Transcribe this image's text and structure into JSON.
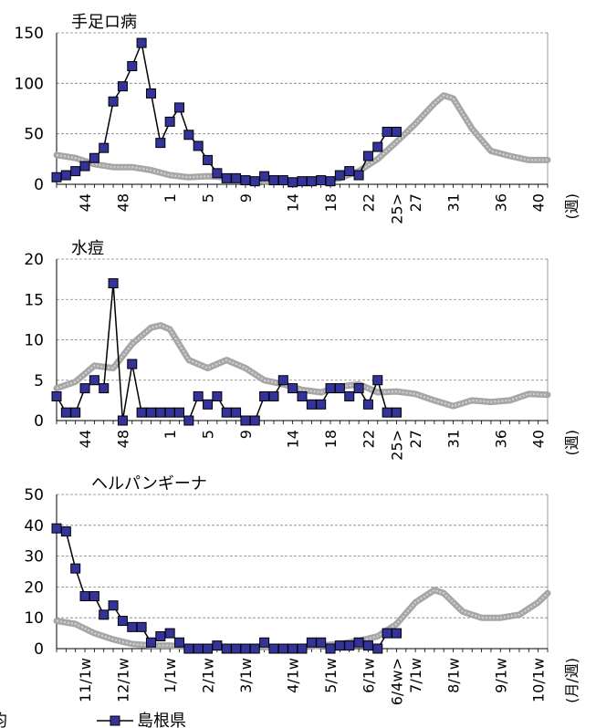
{
  "legend": {
    "left_label": "平均",
    "right_label": "島根県"
  },
  "colors": {
    "avg": "#a6a6a6",
    "shimane_fill": "#333399",
    "shimane_line": "#000000",
    "grid": "#808080"
  },
  "chart_data": [
    {
      "type": "line",
      "title": "手足ロ病",
      "ylim": [
        0,
        150
      ],
      "yticks": [
        "0",
        "50",
        "100",
        "150"
      ],
      "x_unit_label": "(週)",
      "xticks": [
        {
          "x": 44,
          "label": "44"
        },
        {
          "x": 48,
          "label": "48"
        },
        {
          "x": 53,
          "label": "1"
        },
        {
          "x": 57,
          "label": "5"
        },
        {
          "x": 61,
          "label": "9"
        },
        {
          "x": 66,
          "label": "14"
        },
        {
          "x": 70,
          "label": "18"
        },
        {
          "x": 74,
          "label": "22"
        },
        {
          "x": 77,
          "label": "25>"
        },
        {
          "x": 79,
          "label": "27"
        },
        {
          "x": 83,
          "label": "31"
        },
        {
          "x": 88,
          "label": "36"
        },
        {
          "x": 92,
          "label": "40"
        }
      ],
      "x_range": [
        41,
        93
      ],
      "series": [
        {
          "name": "平均",
          "x": [
            41,
            43,
            45,
            47,
            49,
            51,
            53,
            55,
            57,
            59,
            61,
            63,
            65,
            67,
            69,
            71,
            73,
            75,
            77,
            79,
            81,
            82,
            83,
            85,
            87,
            89,
            91,
            93
          ],
          "y": [
            29,
            26,
            20,
            17,
            17,
            14,
            9,
            7,
            8,
            7,
            5,
            3,
            3,
            2,
            3,
            6,
            13,
            25,
            42,
            60,
            80,
            88,
            85,
            55,
            33,
            28,
            24,
            24
          ]
        },
        {
          "name": "島根県",
          "x": [
            41,
            42,
            43,
            44,
            45,
            46,
            47,
            48,
            49,
            50,
            51,
            52,
            53,
            54,
            55,
            56,
            57,
            58,
            59,
            60,
            61,
            62,
            63,
            64,
            65,
            66,
            67,
            68,
            69,
            70,
            71,
            72,
            73,
            74,
            75,
            76,
            77
          ],
          "y": [
            7,
            9,
            13,
            18,
            26,
            36,
            82,
            97,
            117,
            140,
            90,
            41,
            62,
            76,
            49,
            38,
            24,
            11,
            6,
            6,
            4,
            3,
            8,
            4,
            4,
            2,
            3,
            3,
            4,
            3,
            9,
            13,
            9,
            28,
            37,
            52,
            52
          ]
        }
      ]
    },
    {
      "type": "line",
      "title": "水痘",
      "ylim": [
        0,
        20
      ],
      "yticks": [
        "0",
        "5",
        "10",
        "15",
        "20"
      ],
      "x_unit_label": "(週)",
      "xticks": [
        {
          "x": 44,
          "label": "44"
        },
        {
          "x": 48,
          "label": "48"
        },
        {
          "x": 53,
          "label": "1"
        },
        {
          "x": 57,
          "label": "5"
        },
        {
          "x": 61,
          "label": "9"
        },
        {
          "x": 66,
          "label": "14"
        },
        {
          "x": 70,
          "label": "18"
        },
        {
          "x": 74,
          "label": "22"
        },
        {
          "x": 77,
          "label": "25>"
        },
        {
          "x": 79,
          "label": "27"
        },
        {
          "x": 83,
          "label": "31"
        },
        {
          "x": 88,
          "label": "36"
        },
        {
          "x": 92,
          "label": "40"
        }
      ],
      "x_range": [
        41,
        93
      ],
      "series": [
        {
          "name": "平均",
          "x": [
            41,
            43,
            45,
            47,
            49,
            51,
            52,
            53,
            55,
            57,
            59,
            61,
            63,
            65,
            67,
            69,
            71,
            73,
            75,
            77,
            79,
            81,
            83,
            85,
            87,
            89,
            91,
            93
          ],
          "y": [
            4,
            4.8,
            6.8,
            6.5,
            9.5,
            11.5,
            11.8,
            11.3,
            7.5,
            6.5,
            7.5,
            6.5,
            5,
            4.5,
            3.8,
            3.5,
            4.2,
            4.5,
            3.5,
            3.6,
            3.3,
            2.5,
            1.8,
            2.5,
            2.3,
            2.5,
            3.3,
            3.2
          ]
        },
        {
          "name": "島根県",
          "x": [
            41,
            42,
            43,
            44,
            45,
            46,
            47,
            48,
            49,
            50,
            51,
            52,
            53,
            54,
            55,
            56,
            57,
            58,
            59,
            60,
            61,
            62,
            63,
            64,
            65,
            66,
            67,
            68,
            69,
            70,
            71,
            72,
            73,
            74,
            75,
            76,
            77
          ],
          "y": [
            3,
            1,
            1,
            4,
            5,
            4,
            17,
            0,
            7,
            1,
            1,
            1,
            1,
            1,
            0,
            3,
            2,
            3,
            1,
            1,
            0,
            0,
            3,
            3,
            5,
            4,
            3,
            2,
            2,
            4,
            4,
            3,
            4,
            2,
            5,
            1,
            1
          ]
        }
      ]
    },
    {
      "type": "line",
      "title": "ヘルパンギーナ",
      "ylim": [
        0,
        50
      ],
      "yticks": [
        "0",
        "10",
        "20",
        "30",
        "40",
        "50"
      ],
      "x_unit_label": "(月/週)",
      "xticks": [
        {
          "x": 44,
          "label": "11/1w"
        },
        {
          "x": 48,
          "label": "12/1w"
        },
        {
          "x": 53,
          "label": "1/1w"
        },
        {
          "x": 57,
          "label": "2/1w"
        },
        {
          "x": 61,
          "label": "3/1w"
        },
        {
          "x": 66,
          "label": "4/1w"
        },
        {
          "x": 70,
          "label": "5/1w"
        },
        {
          "x": 74,
          "label": "6/1w"
        },
        {
          "x": 77,
          "label": "6/4w>"
        },
        {
          "x": 79,
          "label": "7/1w"
        },
        {
          "x": 83,
          "label": "8/1w"
        },
        {
          "x": 88,
          "label": "9/1w"
        },
        {
          "x": 92,
          "label": "10/1w"
        }
      ],
      "x_range": [
        41,
        93
      ],
      "series": [
        {
          "name": "平均",
          "x": [
            41,
            43,
            45,
            47,
            49,
            51,
            53,
            55,
            57,
            59,
            61,
            63,
            65,
            67,
            69,
            71,
            73,
            75,
            77,
            79,
            81,
            82,
            83,
            84,
            86,
            88,
            90,
            92,
            93
          ],
          "y": [
            9,
            8,
            5,
            3,
            1.5,
            1,
            1,
            0.5,
            0.5,
            0.5,
            0.5,
            0.5,
            0.5,
            0.5,
            1,
            1.5,
            2.5,
            4,
            8,
            15,
            19,
            18,
            15,
            12,
            10,
            10,
            11,
            15,
            18
          ]
        },
        {
          "name": "島根県",
          "x": [
            41,
            42,
            43,
            44,
            45,
            46,
            47,
            48,
            49,
            50,
            51,
            52,
            53,
            54,
            55,
            56,
            57,
            58,
            59,
            60,
            61,
            62,
            63,
            64,
            65,
            66,
            67,
            68,
            69,
            70,
            71,
            72,
            73,
            74,
            75,
            76,
            77
          ],
          "y": [
            39,
            38,
            26,
            17,
            17,
            11,
            14,
            9,
            7,
            7,
            2,
            4,
            5,
            2,
            0,
            0,
            0,
            1,
            0,
            0,
            0,
            0,
            2,
            0,
            0,
            0,
            0,
            2,
            2,
            0,
            1,
            1,
            2,
            1,
            0,
            5,
            5
          ]
        }
      ]
    }
  ]
}
